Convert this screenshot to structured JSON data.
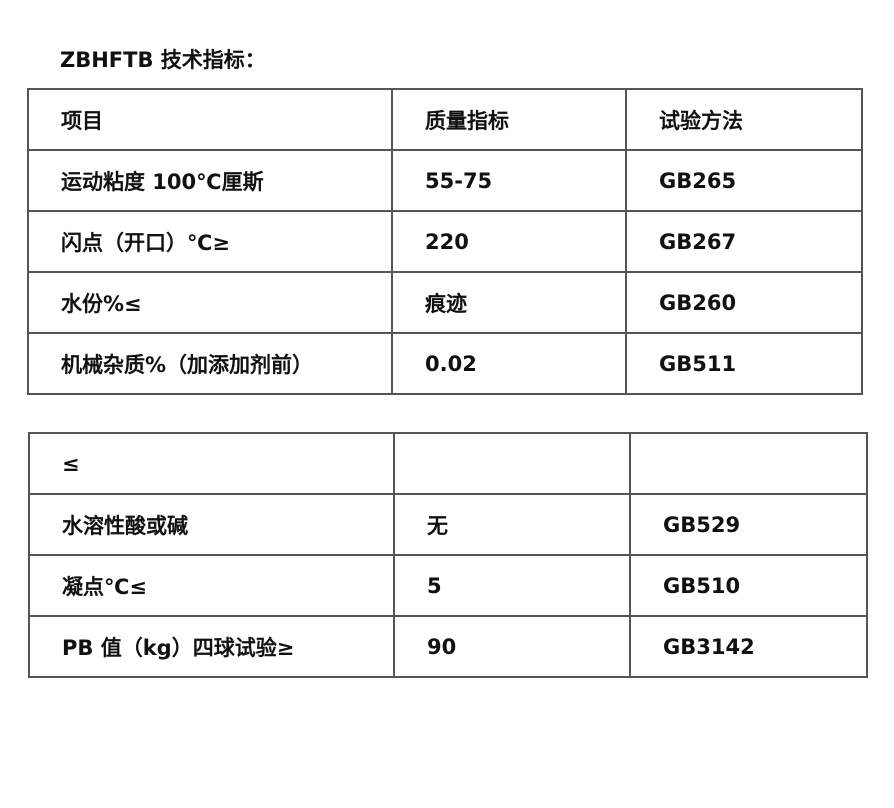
{
  "title": "ZBHFTB 技术指标：",
  "table1": {
    "rows": [
      [
        "项目",
        "质量指标",
        "试验方法"
      ],
      [
        "运动粘度 100℃厘斯",
        "55-75",
        "GB265"
      ],
      [
        "闪点（开口）℃≥",
        "220",
        "GB267"
      ],
      [
        "水份%≤",
        "痕迹",
        "GB260"
      ],
      [
        "机械杂质%（加添加剂前）",
        "0.02",
        "GB511"
      ]
    ]
  },
  "table2": {
    "rows": [
      [
        "≤",
        "",
        ""
      ],
      [
        "水溶性酸或碱",
        "无",
        "GB529"
      ],
      [
        "凝点℃≤",
        "5",
        "GB510"
      ],
      [
        "PB 值（kg）四球试验≥",
        "90",
        "GB3142"
      ]
    ]
  }
}
